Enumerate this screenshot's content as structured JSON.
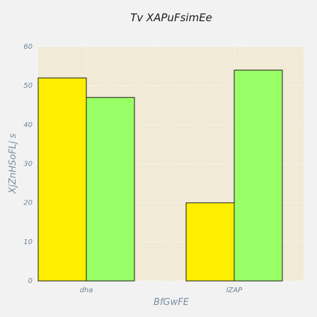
{
  "chart_data": {
    "type": "bar",
    "title": "Tv XAPuFsimEe",
    "xlabel": "BfGwFE",
    "ylabel": "XjZnHSoFLj s",
    "categories": [
      "dha",
      "lZAP"
    ],
    "series": [
      {
        "values": [
          52,
          20
        ],
        "color": "#ffee00"
      },
      {
        "values": [
          47,
          54
        ],
        "color": "#99ff66"
      }
    ],
    "ylim": [
      0,
      60
    ],
    "yticks": [
      0,
      10,
      20,
      30,
      40,
      50,
      60
    ],
    "grid": true,
    "plot_background": "#f0ead6",
    "legend": "none"
  }
}
